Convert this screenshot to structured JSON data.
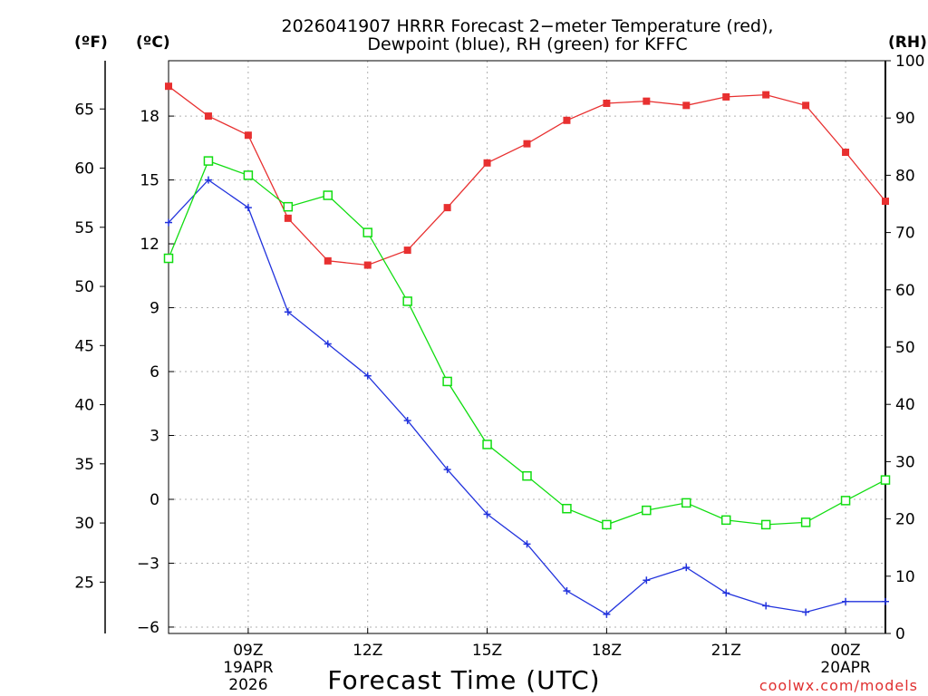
{
  "title_line1": "2026041907 HRRR Forecast 2−meter Temperature (red),",
  "title_line2": "Dewpoint (blue), RH (green) for KFFC",
  "units": {
    "f": "(ºF)",
    "c": "(ºC)",
    "rh": "(RH)"
  },
  "xlabel": "Forecast Time (UTC)",
  "credit": "coolwx.com/models",
  "colors": {
    "temperature": "#e83030",
    "dewpoint": "#2233dd",
    "rh": "#11dd11"
  },
  "chart_data": {
    "type": "line",
    "x": [
      7,
      8,
      9,
      10,
      11,
      12,
      13,
      14,
      15,
      16,
      17,
      18,
      19,
      20,
      21,
      22,
      23,
      24,
      25
    ],
    "xlim": [
      7,
      25
    ],
    "x_ticks": [
      {
        "hour": 9,
        "labels": [
          "09Z",
          "19APR",
          "2026"
        ]
      },
      {
        "hour": 12,
        "labels": [
          "12Z"
        ]
      },
      {
        "hour": 15,
        "labels": [
          "15Z"
        ]
      },
      {
        "hour": 18,
        "labels": [
          "18Z"
        ]
      },
      {
        "hour": 21,
        "labels": [
          "21Z"
        ]
      },
      {
        "hour": 24,
        "labels": [
          "00Z",
          "20APR"
        ]
      }
    ],
    "ylim_c": [
      -6.3,
      20.6
    ],
    "ylim_rh": [
      0,
      100
    ],
    "yticks_c": [
      "18",
      "15",
      "12",
      "9",
      "6",
      "3",
      "0",
      "−3",
      "−6"
    ],
    "yticks_f": [
      "65",
      "60",
      "55",
      "50",
      "45",
      "40",
      "35",
      "30",
      "25"
    ],
    "yticks_rh": [
      "100",
      "90",
      "80",
      "70",
      "60",
      "50",
      "40",
      "30",
      "20",
      "10",
      "0"
    ],
    "series": [
      {
        "name": "Temperature",
        "axis": "c",
        "marker": "filled-square",
        "values": [
          19.4,
          18.0,
          17.1,
          13.2,
          11.2,
          11.0,
          11.7,
          13.7,
          15.8,
          16.7,
          17.8,
          18.6,
          18.7,
          18.5,
          18.9,
          19.0,
          18.5,
          16.3,
          14.0
        ]
      },
      {
        "name": "Dewpoint",
        "axis": "c",
        "marker": "plus",
        "values": [
          13.0,
          15.0,
          13.7,
          8.8,
          7.3,
          5.8,
          3.7,
          1.4,
          -0.7,
          -2.1,
          -4.3,
          -5.4,
          -3.8,
          -3.2,
          -4.4,
          -5.0,
          -5.3,
          -4.8,
          -4.8
        ]
      },
      {
        "name": "RH",
        "axis": "rh",
        "marker": "open-square",
        "values": [
          65.5,
          82.5,
          80.0,
          74.5,
          76.5,
          70.0,
          58.0,
          44.0,
          33.0,
          27.5,
          21.8,
          19.0,
          21.5,
          22.8,
          19.8,
          19.0,
          19.4,
          23.2,
          26.8
        ]
      }
    ]
  }
}
